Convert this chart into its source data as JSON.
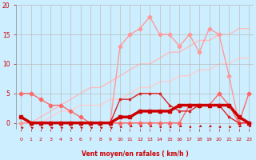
{
  "xlabel": "Vent moyen/en rafales ( km/h )",
  "x": [
    0,
    1,
    2,
    3,
    4,
    5,
    6,
    7,
    8,
    9,
    10,
    11,
    12,
    13,
    14,
    15,
    16,
    17,
    18,
    19,
    20,
    21,
    22,
    23
  ],
  "xlim": [
    -0.5,
    23.5
  ],
  "ylim": [
    -1,
    20
  ],
  "yticks": [
    0,
    5,
    10,
    15,
    20
  ],
  "xticks": [
    0,
    1,
    2,
    3,
    4,
    5,
    6,
    7,
    8,
    9,
    10,
    11,
    12,
    13,
    14,
    15,
    16,
    17,
    18,
    19,
    20,
    21,
    22,
    23
  ],
  "bg_color": "#cceeff",
  "grid_color": "#bbbbbb",
  "line_thick_red": {
    "y": [
      1,
      0,
      0,
      0,
      0,
      0,
      0,
      0,
      0,
      0,
      1,
      1,
      2,
      2,
      2,
      2,
      3,
      3,
      3,
      3,
      3,
      3,
      1,
      0
    ],
    "color": "#cc0000",
    "lw": 2.5,
    "marker": "s",
    "ms": 2.5,
    "zorder": 5
  },
  "line_thin_red": {
    "y": [
      1,
      0,
      0,
      0,
      0,
      0,
      0,
      0,
      0,
      0,
      4,
      4,
      5,
      5,
      5,
      3,
      2,
      2,
      3,
      3,
      3,
      1,
      0,
      0
    ],
    "color": "#dd2222",
    "lw": 1.0,
    "marker": "s",
    "ms": 2.0,
    "zorder": 4
  },
  "line_medium_pink": {
    "y": [
      5,
      5,
      4,
      3,
      3,
      2,
      1,
      0,
      0,
      0,
      0,
      0,
      0,
      0,
      0,
      0,
      0,
      3,
      3,
      3,
      5,
      3,
      0,
      5
    ],
    "color": "#ff6666",
    "lw": 1.0,
    "marker": "D",
    "ms": 2.5,
    "zorder": 3
  },
  "line_light_pink_markers": {
    "y": [
      0,
      0,
      0,
      0,
      0,
      0,
      0,
      0,
      0,
      0,
      13,
      15,
      16,
      18,
      15,
      15,
      13,
      15,
      12,
      16,
      15,
      8,
      0,
      0
    ],
    "color": "#ff9999",
    "lw": 1.0,
    "marker": "D",
    "ms": 2.5,
    "zorder": 2
  },
  "line_trend_upper": {
    "y": [
      0,
      0,
      1,
      2,
      3,
      4,
      5,
      6,
      6,
      7,
      8,
      9,
      10,
      10,
      11,
      12,
      12,
      13,
      14,
      14,
      15,
      15,
      16,
      16
    ],
    "color": "#ffbbbb",
    "lw": 1.0,
    "zorder": 1
  },
  "line_trend_lower": {
    "y": [
      0,
      0,
      0,
      1,
      2,
      2,
      3,
      3,
      3,
      4,
      4,
      5,
      6,
      6,
      7,
      7,
      8,
      8,
      9,
      9,
      10,
      10,
      11,
      11
    ],
    "color": "#ffcccc",
    "lw": 1.0,
    "zorder": 1
  },
  "arrow_angles": [
    225,
    225,
    225,
    225,
    225,
    225,
    225,
    225,
    225,
    225,
    270,
    315,
    315,
    315,
    270,
    270,
    315,
    270,
    315,
    315,
    270,
    270,
    315,
    315
  ]
}
